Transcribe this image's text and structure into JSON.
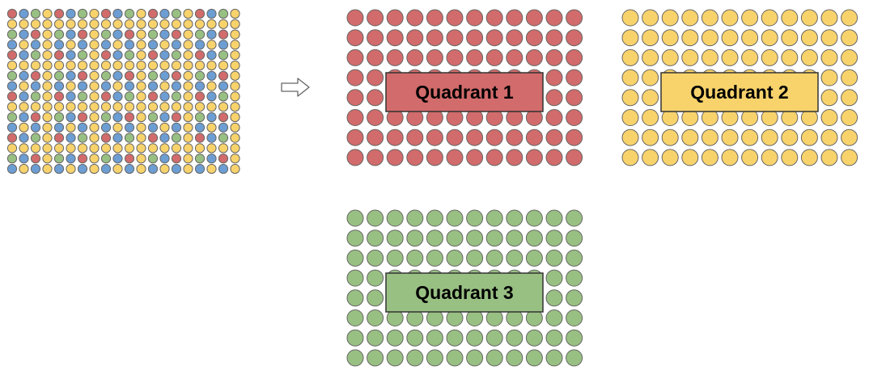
{
  "palette": {
    "red": "#d26b6b",
    "yellow": "#f8d36c",
    "green": "#99c083",
    "blue": "#6c9ed4",
    "stroke": "#666666",
    "label_stroke": "#333333"
  },
  "source_grid": {
    "rows": 16,
    "cols": 20,
    "colors": [
      "red",
      "yellow",
      "green",
      "blue"
    ],
    "description_of_color_pattern": ""
  },
  "arrow": {
    "icon": "right-arrow-icon"
  },
  "quadrants": [
    {
      "label": "Quadrant 1",
      "color": "red",
      "rows": 8,
      "cols": 12
    },
    {
      "label": "Quadrant 2",
      "color": "yellow",
      "rows": 8,
      "cols": 12
    },
    {
      "label": "Quadrant 3",
      "color": "green",
      "rows": 8,
      "cols": 12
    }
  ]
}
